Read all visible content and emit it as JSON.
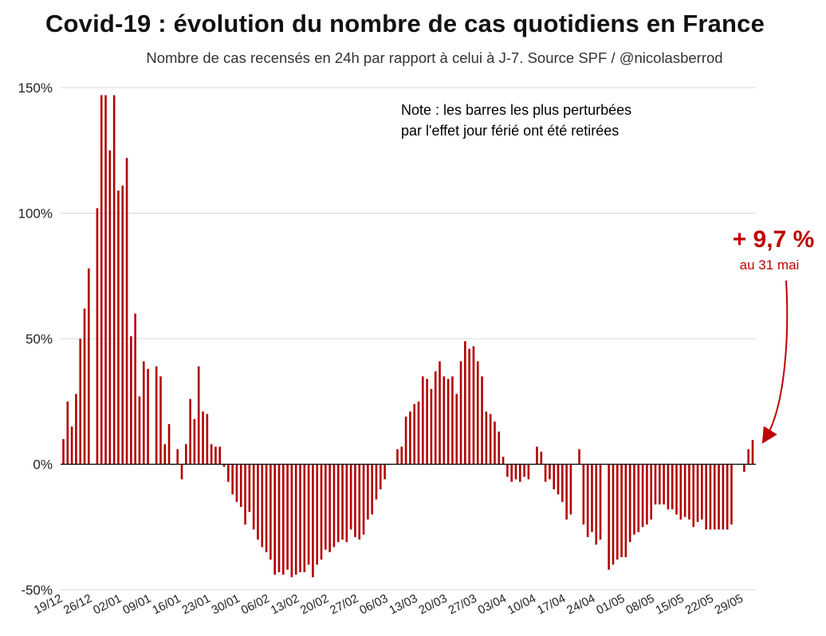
{
  "title": "Covid-19 : évolution du nombre de cas quotidiens en France",
  "subtitle": "Nombre de cas recensés en 24h par rapport à celui à J-7. Source SPF / @nicolasberrod",
  "colors": {
    "bar": "#b20000",
    "grid": "#d9d9d9",
    "axis": "#000000",
    "accent": "#c00000"
  },
  "chart_data": {
    "type": "bar",
    "title": "Covid-19 : évolution du nombre de cas quotidiens en France",
    "subtitle": "Nombre de cas recensés en 24h par rapport à celui à J-7. Source SPF / @nicolasberrod",
    "xlabel": "",
    "ylabel": "",
    "ylim": [
      -50,
      150
    ],
    "y_ticks": [
      150,
      100,
      50,
      0,
      -50
    ],
    "y_tick_labels": [
      "150%",
      "100%",
      "50%",
      "0%",
      "-50%"
    ],
    "grid": true,
    "x_tick_labels": [
      "19/12",
      "26/12",
      "02/01",
      "09/01",
      "16/01",
      "23/01",
      "30/01",
      "06/02",
      "13/02",
      "20/02",
      "27/02",
      "06/03",
      "13/03",
      "20/03",
      "27/03",
      "03/04",
      "10/04",
      "17/04",
      "24/04",
      "01/05",
      "08/05",
      "15/05",
      "22/05",
      "29/05"
    ],
    "values": [
      10,
      25,
      15,
      28,
      50,
      62,
      78,
      null,
      102,
      147,
      147,
      125,
      147,
      109,
      111,
      122,
      51,
      60,
      27,
      41,
      38,
      null,
      39,
      35,
      8,
      16,
      0,
      6,
      -6,
      8,
      26,
      18,
      39,
      21,
      20,
      8,
      7,
      7,
      -1,
      -7,
      -12,
      -15,
      -17,
      -24,
      -19,
      -26,
      -30,
      -33,
      -35,
      -38,
      -44,
      -43,
      -44,
      -42,
      -45,
      -44,
      -43,
      -43,
      -40,
      -45,
      -40,
      -38,
      -34,
      -35,
      -33,
      -31,
      -30,
      -31,
      -26,
      -29,
      -30,
      -28,
      -22,
      -20,
      -14,
      -10,
      -6,
      0,
      null,
      6,
      7,
      19,
      21,
      24,
      25,
      35,
      34,
      30,
      37,
      41,
      35,
      34,
      35,
      28,
      41,
      49,
      46,
      47,
      41,
      35,
      21,
      20,
      17,
      13,
      3,
      -5,
      -7,
      -6,
      -7,
      -5,
      -6,
      null,
      7,
      5,
      -7,
      -6,
      -10,
      -12,
      -15,
      -22,
      -20,
      null,
      6,
      -24,
      -29,
      -27,
      -32,
      -30,
      null,
      -42,
      -40,
      -38,
      -37,
      -37,
      -31,
      -28,
      -27,
      -25,
      -24,
      -22,
      -16,
      -16,
      -16,
      -18,
      -18,
      -20,
      -22,
      -21,
      -22,
      -25,
      -23,
      -22,
      -26,
      -26,
      -26,
      -26,
      -26,
      -26,
      -24,
      null,
      null,
      -3,
      6,
      9.7
    ],
    "annotations": [
      {
        "text": "Note : les barres les plus perturbées",
        "kind": "note"
      },
      {
        "text": "par l'effet jour férié ont été retirées",
        "kind": "note"
      },
      {
        "text": "+ 9,7 %",
        "kind": "callout"
      },
      {
        "text": "au 31 mai",
        "kind": "callout"
      }
    ]
  }
}
